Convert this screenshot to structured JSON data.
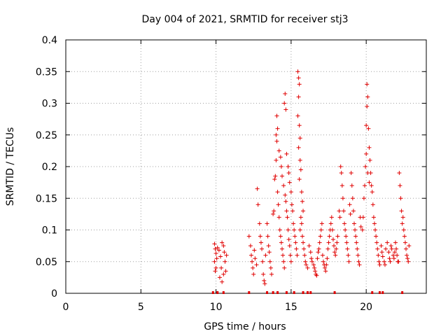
{
  "chart_data": {
    "type": "scatter",
    "title": "Day 004 of 2021, SRMTID for receiver stj3",
    "xlabel": "GPS time / hours",
    "ylabel": "SRMTID / TECUs",
    "xlim": [
      0,
      24
    ],
    "ylim": [
      0,
      0.4
    ],
    "x_ticks": [
      0,
      5,
      10,
      15,
      20
    ],
    "x_tick_labels": [
      "0",
      "5",
      "10",
      "15",
      "20"
    ],
    "y_ticks": [
      0,
      0.05,
      0.1,
      0.15,
      0.2,
      0.25,
      0.3,
      0.35,
      0.4
    ],
    "y_tick_labels": [
      "0",
      "0.05",
      "0.1",
      "0.15",
      "0.2",
      "0.25",
      "0.3",
      "0.35",
      "0.4"
    ],
    "grid": true,
    "marker": "+",
    "color": "#e00000",
    "series": [
      {
        "name": "SRMTID",
        "points": [
          [
            9.9,
            0.078
          ],
          [
            9.95,
            0.07
          ],
          [
            10.0,
            0.063
          ],
          [
            10.05,
            0.055
          ],
          [
            9.9,
            0.05
          ],
          [
            10.0,
            0.04
          ],
          [
            9.95,
            0.035
          ],
          [
            10.1,
            0.072
          ],
          [
            10.2,
            0.068
          ],
          [
            10.3,
            0.058
          ],
          [
            10.35,
            0.04
          ],
          [
            10.25,
            0.025
          ],
          [
            10.4,
            0.018
          ],
          [
            10.5,
            0.075
          ],
          [
            10.55,
            0.065
          ],
          [
            10.6,
            0.05
          ],
          [
            10.65,
            0.035
          ],
          [
            10.5,
            0.03
          ],
          [
            10.7,
            0.06
          ],
          [
            10.4,
            0.08
          ],
          [
            12.2,
            0.09
          ],
          [
            12.3,
            0.075
          ],
          [
            12.35,
            0.06
          ],
          [
            12.4,
            0.05
          ],
          [
            12.45,
            0.04
          ],
          [
            12.5,
            0.03
          ],
          [
            12.55,
            0.068
          ],
          [
            12.6,
            0.055
          ],
          [
            12.7,
            0.045
          ],
          [
            12.75,
            0.165
          ],
          [
            12.8,
            0.14
          ],
          [
            12.9,
            0.11
          ],
          [
            12.95,
            0.09
          ],
          [
            13.0,
            0.08
          ],
          [
            13.05,
            0.07
          ],
          [
            13.1,
            0.05
          ],
          [
            13.15,
            0.03
          ],
          [
            13.2,
            0.02
          ],
          [
            13.25,
            0.015
          ],
          [
            13.3,
            0.06
          ],
          [
            13.4,
            0.11
          ],
          [
            13.45,
            0.09
          ],
          [
            13.5,
            0.075
          ],
          [
            13.55,
            0.065
          ],
          [
            13.6,
            0.05
          ],
          [
            13.65,
            0.04
          ],
          [
            13.7,
            0.03
          ],
          [
            13.8,
            0.125
          ],
          [
            13.85,
            0.13
          ],
          [
            13.9,
            0.18
          ],
          [
            13.95,
            0.185
          ],
          [
            14.0,
            0.21
          ],
          [
            14.05,
            0.24
          ],
          [
            14.1,
            0.16
          ],
          [
            14.15,
            0.14
          ],
          [
            14.2,
            0.12
          ],
          [
            14.25,
            0.1
          ],
          [
            14.3,
            0.09
          ],
          [
            14.35,
            0.08
          ],
          [
            14.4,
            0.07
          ],
          [
            14.45,
            0.06
          ],
          [
            14.5,
            0.05
          ],
          [
            14.55,
            0.04
          ],
          [
            14.0,
            0.25
          ],
          [
            14.05,
            0.28
          ],
          [
            14.1,
            0.26
          ],
          [
            14.2,
            0.225
          ],
          [
            14.3,
            0.215
          ],
          [
            14.35,
            0.2
          ],
          [
            14.4,
            0.185
          ],
          [
            14.5,
            0.17
          ],
          [
            14.6,
            0.155
          ],
          [
            14.65,
            0.145
          ],
          [
            14.7,
            0.13
          ],
          [
            14.75,
            0.12
          ],
          [
            14.8,
            0.1
          ],
          [
            14.85,
            0.085
          ],
          [
            14.9,
            0.075
          ],
          [
            14.95,
            0.06
          ],
          [
            15.0,
            0.05
          ],
          [
            14.55,
            0.3
          ],
          [
            14.6,
            0.315
          ],
          [
            14.65,
            0.29
          ],
          [
            14.7,
            0.22
          ],
          [
            14.8,
            0.2
          ],
          [
            14.85,
            0.19
          ],
          [
            14.9,
            0.175
          ],
          [
            15.0,
            0.16
          ],
          [
            15.05,
            0.14
          ],
          [
            15.1,
            0.13
          ],
          [
            15.15,
            0.11
          ],
          [
            15.2,
            0.1
          ],
          [
            15.25,
            0.09
          ],
          [
            15.3,
            0.08
          ],
          [
            15.35,
            0.07
          ],
          [
            15.4,
            0.06
          ],
          [
            15.45,
            0.35
          ],
          [
            15.5,
            0.34
          ],
          [
            15.55,
            0.33
          ],
          [
            15.5,
            0.31
          ],
          [
            15.45,
            0.28
          ],
          [
            15.55,
            0.265
          ],
          [
            15.6,
            0.245
          ],
          [
            15.5,
            0.23
          ],
          [
            15.6,
            0.21
          ],
          [
            15.65,
            0.195
          ],
          [
            15.55,
            0.18
          ],
          [
            15.7,
            0.16
          ],
          [
            15.75,
            0.145
          ],
          [
            15.8,
            0.13
          ],
          [
            15.65,
            0.12
          ],
          [
            15.7,
            0.11
          ],
          [
            15.6,
            0.1
          ],
          [
            15.75,
            0.09
          ],
          [
            15.8,
            0.08
          ],
          [
            15.85,
            0.07
          ],
          [
            15.9,
            0.06
          ],
          [
            15.95,
            0.05
          ],
          [
            16.0,
            0.045
          ],
          [
            16.1,
            0.04
          ],
          [
            16.2,
            0.075
          ],
          [
            16.3,
            0.065
          ],
          [
            16.35,
            0.055
          ],
          [
            16.4,
            0.05
          ],
          [
            16.5,
            0.045
          ],
          [
            16.55,
            0.04
          ],
          [
            16.6,
            0.035
          ],
          [
            16.65,
            0.03
          ],
          [
            16.7,
            0.028
          ],
          [
            16.75,
            0.055
          ],
          [
            16.8,
            0.065
          ],
          [
            16.85,
            0.07
          ],
          [
            16.9,
            0.08
          ],
          [
            16.95,
            0.09
          ],
          [
            17.0,
            0.1
          ],
          [
            17.05,
            0.11
          ],
          [
            17.1,
            0.06
          ],
          [
            17.15,
            0.05
          ],
          [
            17.2,
            0.045
          ],
          [
            17.25,
            0.04
          ],
          [
            17.3,
            0.035
          ],
          [
            17.35,
            0.045
          ],
          [
            17.4,
            0.055
          ],
          [
            17.45,
            0.07
          ],
          [
            17.5,
            0.08
          ],
          [
            17.55,
            0.09
          ],
          [
            17.6,
            0.1
          ],
          [
            17.65,
            0.11
          ],
          [
            17.7,
            0.12
          ],
          [
            17.75,
            0.1
          ],
          [
            17.8,
            0.085
          ],
          [
            17.85,
            0.075
          ],
          [
            17.9,
            0.065
          ],
          [
            17.95,
            0.06
          ],
          [
            18.0,
            0.07
          ],
          [
            18.05,
            0.08
          ],
          [
            18.1,
            0.09
          ],
          [
            18.2,
            0.13
          ],
          [
            18.25,
            0.12
          ],
          [
            18.3,
            0.2
          ],
          [
            18.35,
            0.19
          ],
          [
            18.4,
            0.17
          ],
          [
            18.45,
            0.15
          ],
          [
            18.5,
            0.13
          ],
          [
            18.55,
            0.11
          ],
          [
            18.6,
            0.1
          ],
          [
            18.65,
            0.09
          ],
          [
            18.7,
            0.08
          ],
          [
            18.75,
            0.07
          ],
          [
            18.8,
            0.06
          ],
          [
            18.85,
            0.05
          ],
          [
            18.9,
            0.14
          ],
          [
            18.95,
            0.125
          ],
          [
            19.0,
            0.19
          ],
          [
            19.05,
            0.17
          ],
          [
            19.1,
            0.15
          ],
          [
            19.15,
            0.13
          ],
          [
            19.2,
            0.11
          ],
          [
            19.25,
            0.1
          ],
          [
            19.3,
            0.09
          ],
          [
            19.35,
            0.08
          ],
          [
            19.4,
            0.07
          ],
          [
            19.45,
            0.06
          ],
          [
            19.5,
            0.05
          ],
          [
            19.55,
            0.045
          ],
          [
            19.6,
            0.12
          ],
          [
            19.65,
            0.105
          ],
          [
            19.75,
            0.1
          ],
          [
            19.8,
            0.12
          ],
          [
            19.85,
            0.15
          ],
          [
            19.9,
            0.17
          ],
          [
            19.95,
            0.2
          ],
          [
            20.0,
            0.265
          ],
          [
            20.05,
            0.295
          ],
          [
            20.1,
            0.31
          ],
          [
            20.05,
            0.33
          ],
          [
            20.15,
            0.26
          ],
          [
            20.2,
            0.23
          ],
          [
            20.25,
            0.21
          ],
          [
            20.3,
            0.19
          ],
          [
            20.35,
            0.17
          ],
          [
            20.4,
            0.16
          ],
          [
            20.45,
            0.14
          ],
          [
            20.5,
            0.12
          ],
          [
            20.55,
            0.11
          ],
          [
            20.6,
            0.1
          ],
          [
            20.65,
            0.09
          ],
          [
            20.7,
            0.08
          ],
          [
            20.75,
            0.07
          ],
          [
            20.8,
            0.06
          ],
          [
            20.85,
            0.05
          ],
          [
            20.9,
            0.045
          ],
          [
            20.0,
            0.22
          ],
          [
            20.1,
            0.19
          ],
          [
            20.2,
            0.175
          ],
          [
            21.0,
            0.075
          ],
          [
            21.05,
            0.065
          ],
          [
            21.1,
            0.058
          ],
          [
            21.2,
            0.05
          ],
          [
            21.25,
            0.045
          ],
          [
            21.3,
            0.07
          ],
          [
            21.4,
            0.08
          ],
          [
            21.5,
            0.065
          ],
          [
            21.55,
            0.055
          ],
          [
            21.6,
            0.05
          ],
          [
            21.65,
            0.075
          ],
          [
            21.7,
            0.07
          ],
          [
            21.8,
            0.06
          ],
          [
            21.85,
            0.055
          ],
          [
            21.9,
            0.065
          ],
          [
            21.95,
            0.08
          ],
          [
            22.0,
            0.07
          ],
          [
            22.05,
            0.06
          ],
          [
            22.1,
            0.05
          ],
          [
            22.15,
            0.05
          ],
          [
            22.2,
            0.19
          ],
          [
            22.25,
            0.17
          ],
          [
            22.3,
            0.15
          ],
          [
            22.35,
            0.13
          ],
          [
            22.4,
            0.11
          ],
          [
            22.45,
            0.12
          ],
          [
            22.5,
            0.1
          ],
          [
            22.55,
            0.09
          ],
          [
            22.6,
            0.08
          ],
          [
            22.65,
            0.07
          ],
          [
            22.7,
            0.06
          ],
          [
            22.75,
            0.055
          ],
          [
            22.8,
            0.05
          ],
          [
            22.85,
            0.075
          ]
        ],
        "zero_points": [
          9.8,
          10.1,
          10.5,
          12.2,
          13.4,
          13.8,
          14.1,
          14.7,
          15.2,
          15.8,
          16.1,
          16.3,
          17.9,
          20.4,
          20.9,
          21.1,
          22.4
        ]
      }
    ]
  }
}
